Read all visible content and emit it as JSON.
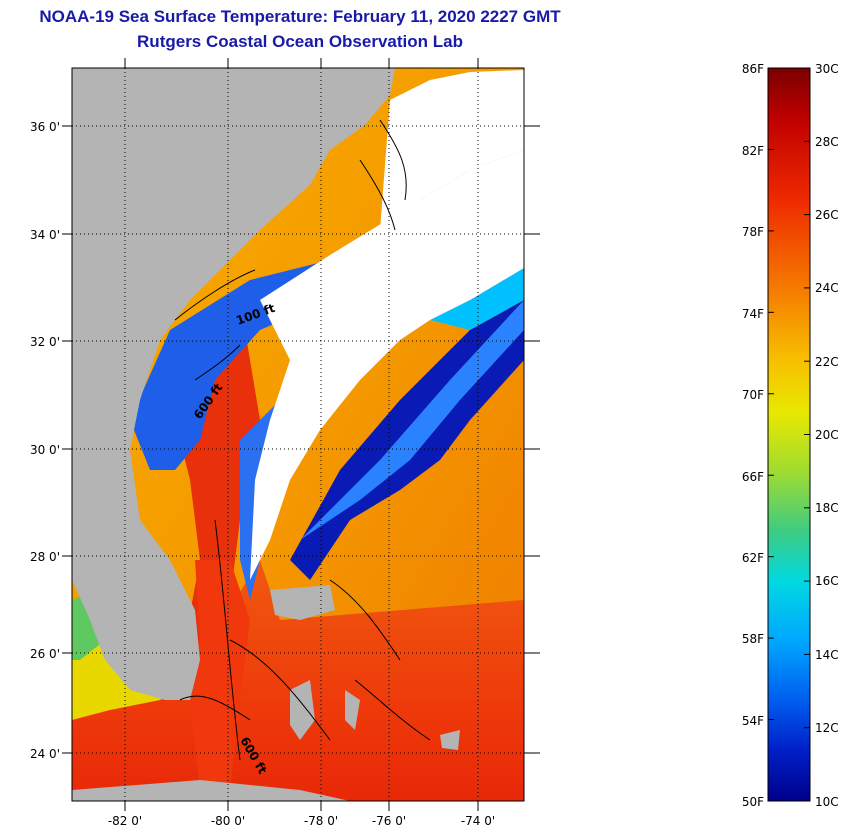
{
  "title": "NOAA-19 Sea Surface Temperature:  February 11, 2020 2227 GMT",
  "subtitle": "Rutgers Coastal Ocean Observation Lab",
  "map": {
    "lat_labels": [
      "36 0'",
      "34 0'",
      "32 0'",
      "30 0'",
      "28 0'",
      "26 0'",
      "24 0'"
    ],
    "lon_labels": [
      "-82 0'",
      "-80 0'",
      "-78 0'",
      "-76 0'",
      "-74 0'"
    ],
    "contour_labels": [
      "100 ft",
      "600 ft",
      "600 ft"
    ]
  },
  "colorbar": {
    "fahrenheit_labels": [
      "86F",
      "82F",
      "78F",
      "74F",
      "70F",
      "66F",
      "62F",
      "58F",
      "54F",
      "50F"
    ],
    "celsius_labels": [
      "30C",
      "28C",
      "26C",
      "24C",
      "22C",
      "20C",
      "18C",
      "16C",
      "14C",
      "12C",
      "10C"
    ]
  },
  "colors": {
    "title": "#1a1aa8",
    "land": "#b4b4b4",
    "cloud": "#ffffff",
    "warm": "#e83010",
    "cold": "#0a1ab4"
  }
}
